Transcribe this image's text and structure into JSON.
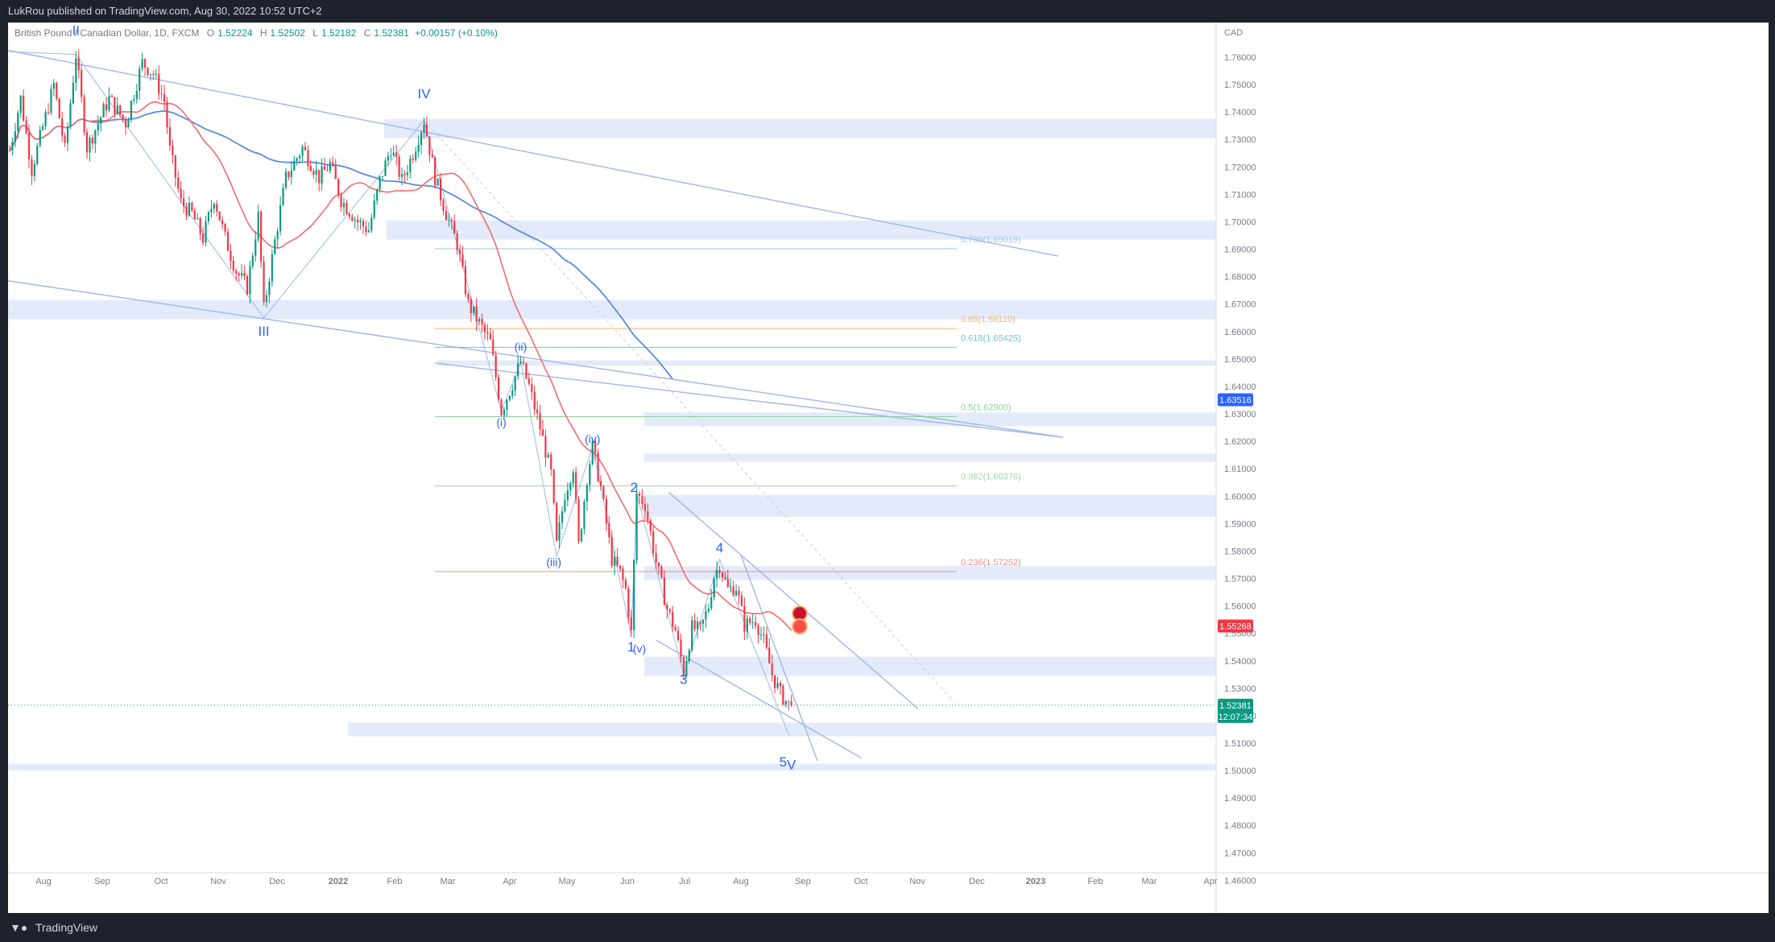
{
  "header": {
    "published_by": "LukRou published on TradingView.com, Aug 30, 2022 10:52 UTC+2"
  },
  "symbol": {
    "name": "British Pound / Canadian Dollar, 1D, FXCM",
    "open_label": "O",
    "open": "1.52224",
    "high_label": "H",
    "high": "1.52502",
    "low_label": "L",
    "low": "1.52182",
    "close_label": "C",
    "close": "1.52381",
    "change": "+0.00157 (+0.10%)"
  },
  "footer": {
    "brand": "TradingView"
  },
  "colors": {
    "up": "#089981",
    "down": "#f23645",
    "zone": "#e3ebfb",
    "channel": "#9fb6ea",
    "wave_label": "#2962ff",
    "ma_fast": "#f26b6b",
    "ma_slow": "#5b8bde"
  },
  "chart_data": {
    "type": "candlestick",
    "currency": "CAD",
    "y_range": [
      1.455,
      1.77
    ],
    "x_ticks": [
      "Aug",
      "Sep",
      "Oct",
      "Nov",
      "Dec",
      "2022",
      "Feb",
      "Mar",
      "Apr",
      "May",
      "Jun",
      "Jul",
      "Aug",
      "Sep",
      "Oct",
      "Nov",
      "Dec",
      "2023",
      "Feb",
      "Mar",
      "Apr"
    ],
    "y_ticks": [
      "1.76000",
      "1.75000",
      "1.74000",
      "1.73000",
      "1.72000",
      "1.71000",
      "1.70000",
      "1.69000",
      "1.68000",
      "1.67000",
      "1.66000",
      "1.65000",
      "1.64000",
      "1.63000",
      "1.62000",
      "1.61000",
      "1.60000",
      "1.59000",
      "1.58000",
      "1.57000",
      "1.56000",
      "1.55000",
      "1.54000",
      "1.53000",
      "1.52000",
      "1.51000",
      "1.50000",
      "1.49000",
      "1.48000",
      "1.47000",
      "1.46000"
    ],
    "price_badges": [
      {
        "value": 1.63516,
        "label": "1.63516",
        "color": "#2962ff"
      },
      {
        "value": 1.55268,
        "label": "1.55268",
        "color": "#f23645"
      },
      {
        "value": 1.52381,
        "label": "1.52381",
        "sub": "12:07:34",
        "color": "#089981"
      }
    ],
    "last_price": 1.52381,
    "fibonacci": [
      {
        "ratio": 0.786,
        "label": "0.786(1.69019)",
        "value": 1.69019,
        "color": "#9ec4ef"
      },
      {
        "ratio": 0.65,
        "label": "0.65(1.66110)",
        "value": 1.6611,
        "color": "#f3b66b"
      },
      {
        "ratio": 0.618,
        "label": "0.618(1.65425)",
        "value": 1.65425,
        "color": "#6fc3d4"
      },
      {
        "ratio": 0.5,
        "label": "0.5(1.62900)",
        "value": 1.629,
        "color": "#8fd19a"
      },
      {
        "ratio": 0.382,
        "label": "0.382(1.60376)",
        "value": 1.60376,
        "color": "#9fd3b4"
      },
      {
        "ratio": 0.236,
        "label": "0.236(1.57252)",
        "value": 1.57252,
        "color": "#f28b8b"
      }
    ],
    "zones": [
      {
        "lo": 1.7305,
        "hi": 1.7375
      },
      {
        "lo": 1.6935,
        "hi": 1.7005
      },
      {
        "lo": 1.6645,
        "hi": 1.6715
      },
      {
        "lo": 1.6475,
        "hi": 1.6495
      },
      {
        "lo": 1.6255,
        "hi": 1.6305
      },
      {
        "lo": 1.6125,
        "hi": 1.6155
      },
      {
        "lo": 1.5925,
        "hi": 1.6005
      },
      {
        "lo": 1.5695,
        "hi": 1.5745
      },
      {
        "lo": 1.5345,
        "hi": 1.5415
      },
      {
        "lo": 1.5125,
        "hi": 1.5175
      },
      {
        "lo": 1.5,
        "hi": 1.5025
      }
    ],
    "wave_labels": [
      {
        "text": "II",
        "date_index": 24,
        "price": 1.768
      },
      {
        "text": "III",
        "date_index": 92,
        "price": 1.6585
      },
      {
        "text": "IV",
        "date_index": 150,
        "price": 1.745
      },
      {
        "text": "(i)",
        "date_index": 178,
        "price": 1.6255
      },
      {
        "text": "(ii)",
        "date_index": 185,
        "price": 1.653
      },
      {
        "text": "(iii)",
        "date_index": 197,
        "price": 1.5745
      },
      {
        "text": "(iv)",
        "date_index": 211,
        "price": 1.6195
      },
      {
        "text": "2",
        "date_index": 226,
        "price": 1.6015
      },
      {
        "text": "1",
        "date_index": 225,
        "price": 1.5435
      },
      {
        "text": "(v)",
        "date_index": 228,
        "price": 1.543
      },
      {
        "text": "3",
        "date_index": 244,
        "price": 1.5315
      },
      {
        "text": "4",
        "date_index": 257,
        "price": 1.5795
      },
      {
        "text": "5",
        "date_index": 280,
        "price": 1.5015
      },
      {
        "text": "V",
        "date_index": 283,
        "price": 1.5005
      }
    ]
  }
}
